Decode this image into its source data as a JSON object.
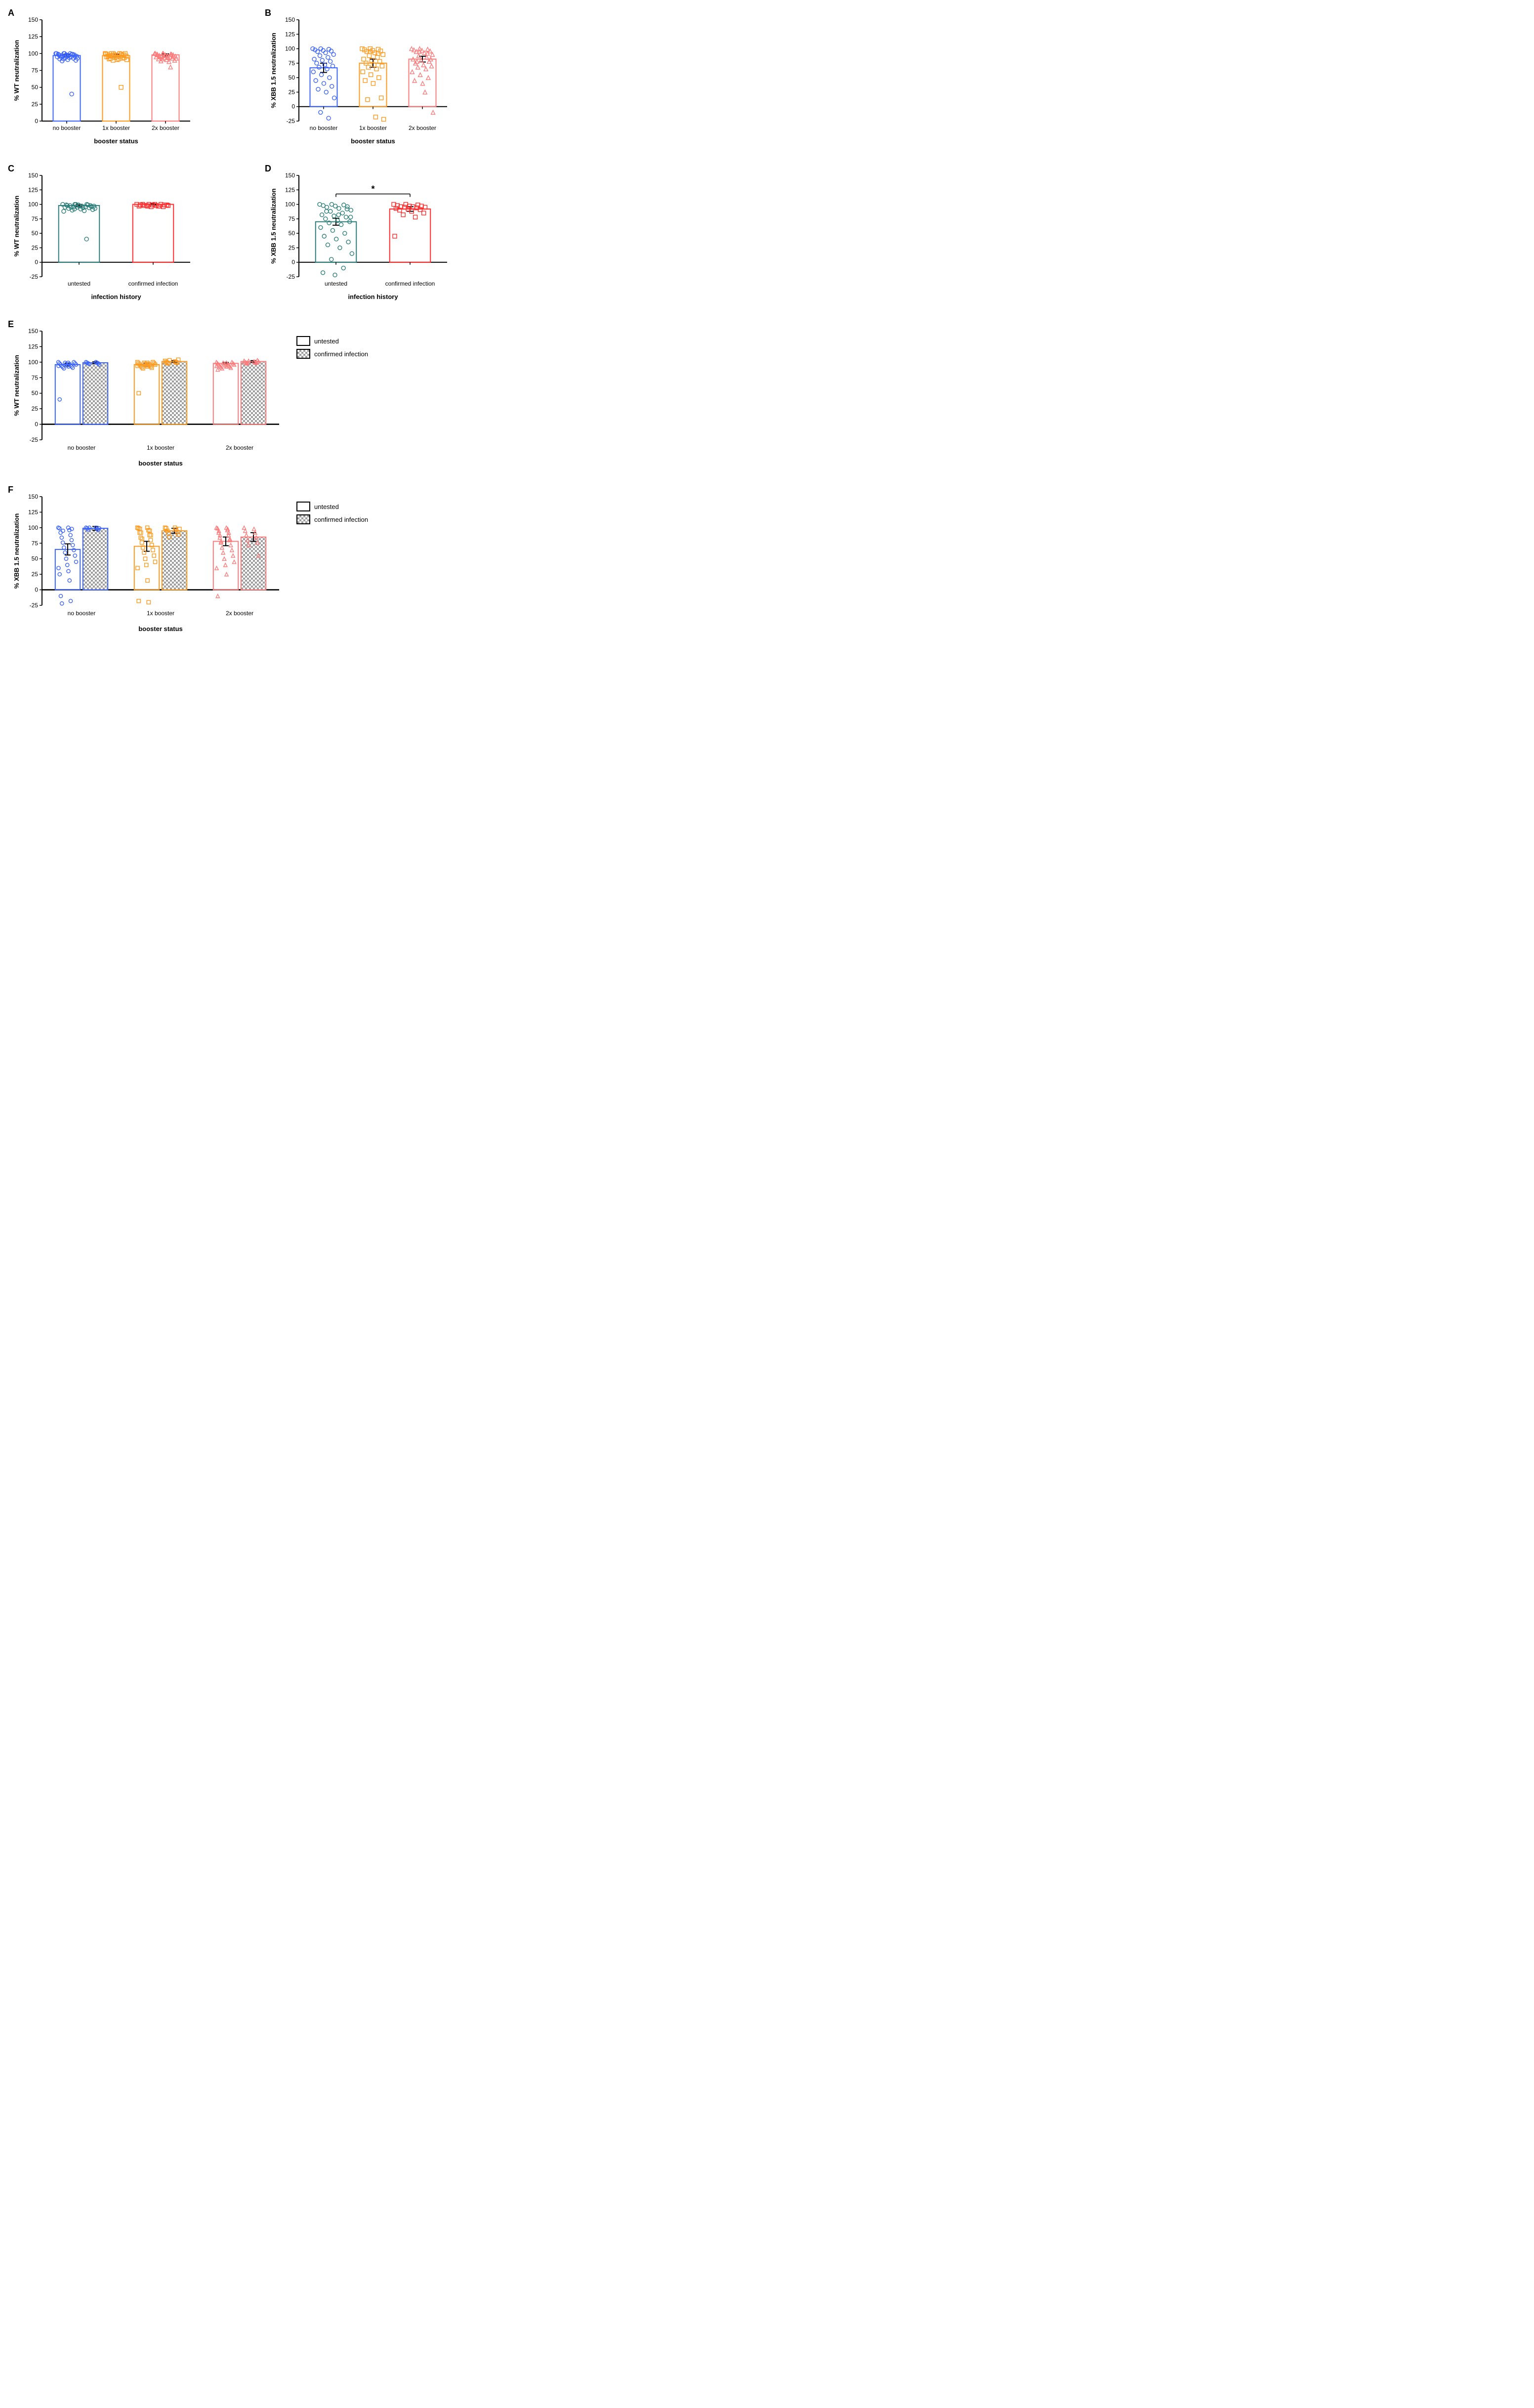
{
  "colors": {
    "blue": "#3a63ff",
    "orange": "#ff9a1f",
    "pink": "#ff7b7b",
    "teal": "#2b7e7a",
    "red": "#ff2d2d",
    "black": "#000000",
    "gray": "#9e9e9e",
    "white": "#ffffff"
  },
  "axis_font_size": 13,
  "tick_font_size": 12,
  "label_font_size": 18,
  "panelA": {
    "label": "A",
    "type": "bar_scatter",
    "ylabel": "% WT neutralization",
    "xlabel": "booster status",
    "ylim": [
      0,
      150
    ],
    "ytick_step": 25,
    "categories": [
      "no booster",
      "1x booster",
      "2x booster"
    ],
    "bar_colors": [
      "#3a63ff",
      "#ff9a1f",
      "#ff7b7b"
    ],
    "marker": [
      "circle",
      "square",
      "triangle"
    ],
    "means": [
      97,
      97,
      98
    ],
    "sem": [
      2,
      2,
      1.5
    ],
    "points": [
      [
        100,
        100,
        99,
        99,
        98,
        98,
        97,
        97,
        96,
        96,
        95,
        95,
        94,
        93,
        92,
        91,
        90,
        89,
        100,
        100,
        100,
        99,
        98,
        97,
        96,
        95,
        94,
        93,
        92,
        40
      ],
      [
        100,
        100,
        99,
        99,
        98,
        98,
        97,
        97,
        96,
        96,
        95,
        95,
        94,
        93,
        92,
        91,
        100,
        100,
        100,
        99,
        98,
        97,
        96,
        95,
        94,
        93,
        92,
        91,
        90,
        50
      ],
      [
        100,
        100,
        99,
        99,
        98,
        98,
        97,
        97,
        96,
        96,
        95,
        95,
        94,
        93,
        92,
        91,
        90,
        89,
        88,
        100,
        100,
        99,
        98,
        97,
        96,
        95,
        94,
        93,
        92,
        80
      ]
    ]
  },
  "panelB": {
    "label": "B",
    "type": "bar_scatter",
    "ylabel": "% XBB 1.5 neutralization",
    "xlabel": "booster status",
    "ylim": [
      -25,
      150
    ],
    "ytick_step": 25,
    "categories": [
      "no booster",
      "1x booster",
      "2x booster"
    ],
    "bar_colors": [
      "#3a63ff",
      "#ff9a1f",
      "#ff7b7b"
    ],
    "marker": [
      "circle",
      "square",
      "triangle"
    ],
    "means": [
      67,
      75,
      82
    ],
    "sem": [
      8,
      7,
      5
    ],
    "points": [
      [
        100,
        100,
        99,
        98,
        97,
        96,
        95,
        93,
        90,
        88,
        85,
        82,
        80,
        78,
        75,
        72,
        70,
        68,
        65,
        60,
        55,
        50,
        45,
        40,
        35,
        30,
        25,
        15,
        -10,
        -20
      ],
      [
        100,
        100,
        99,
        98,
        97,
        96,
        95,
        93,
        90,
        88,
        85,
        82,
        80,
        78,
        75,
        72,
        70,
        68,
        65,
        60,
        55,
        50,
        45,
        40,
        15,
        12,
        -18,
        -22,
        95,
        92
      ],
      [
        100,
        100,
        99,
        98,
        97,
        96,
        95,
        93,
        90,
        88,
        85,
        82,
        80,
        78,
        75,
        72,
        70,
        68,
        65,
        60,
        55,
        50,
        45,
        40,
        82,
        78,
        25,
        -10,
        95,
        92
      ]
    ]
  },
  "panelC": {
    "label": "C",
    "type": "bar_scatter",
    "ylabel": "% WT neutralization",
    "xlabel": "infection history",
    "ylim": [
      -25,
      150
    ],
    "ytick_step": 25,
    "categories": [
      "untested",
      "confirmed infection"
    ],
    "bar_colors": [
      "#2b7e7a",
      "#ff2d2d"
    ],
    "marker": [
      "circle",
      "square"
    ],
    "means": [
      98,
      100
    ],
    "sem": [
      2,
      1
    ],
    "points": [
      [
        100,
        100,
        100,
        99,
        99,
        98,
        98,
        97,
        97,
        96,
        96,
        95,
        95,
        94,
        93,
        92,
        91,
        90,
        89,
        88,
        100,
        99,
        98,
        97,
        96,
        95,
        94,
        93,
        92,
        40
      ],
      [
        100,
        100,
        100,
        99,
        99,
        99,
        98,
        98,
        98,
        97,
        97,
        97,
        96,
        96,
        100,
        100,
        99,
        98,
        97
      ]
    ]
  },
  "panelD": {
    "label": "D",
    "type": "bar_scatter",
    "ylabel": "% XBB 1.5 neutralization",
    "xlabel": "infection history",
    "ylim": [
      -25,
      150
    ],
    "ytick_step": 25,
    "categories": [
      "untested",
      "confirmed infection"
    ],
    "bar_colors": [
      "#2b7e7a",
      "#ff2d2d"
    ],
    "marker": [
      "circle",
      "square"
    ],
    "means": [
      70,
      92
    ],
    "sem": [
      6,
      4
    ],
    "points": [
      [
        100,
        100,
        99,
        98,
        97,
        96,
        95,
        93,
        90,
        88,
        85,
        82,
        80,
        78,
        75,
        72,
        70,
        68,
        65,
        60,
        55,
        50,
        45,
        40,
        35,
        30,
        25,
        15,
        5,
        -10,
        -18,
        -22,
        92,
        88,
        82,
        78
      ],
      [
        100,
        100,
        99,
        98,
        97,
        97,
        96,
        96,
        95,
        95,
        94,
        93,
        92,
        91,
        90,
        88,
        85,
        82,
        78,
        45
      ]
    ],
    "sig": {
      "from": 0,
      "to": 1,
      "label": "*",
      "y": 118
    }
  },
  "panelE": {
    "label": "E",
    "type": "grouped_bar_scatter",
    "ylabel": "% WT neutralization",
    "xlabel": "booster status",
    "ylim": [
      -25,
      150
    ],
    "ytick_step": 25,
    "categories": [
      "no booster",
      "1x booster",
      "2x booster"
    ],
    "sub_labels": [
      "untested",
      "confirmed infection"
    ],
    "bar_colors": [
      "#3a63ff",
      "#ff9a1f",
      "#ff7b7b"
    ],
    "marker": [
      "circle",
      "square",
      "triangle"
    ],
    "hatched_second": true,
    "means": [
      [
        96,
        99
      ],
      [
        96,
        101
      ],
      [
        98,
        101
      ]
    ],
    "sem": [
      [
        2,
        1.5
      ],
      [
        2,
        1.5
      ],
      [
        1.5,
        1.5
      ]
    ],
    "points": [
      [
        [
          100,
          99,
          98,
          97,
          96,
          95,
          94,
          93,
          92,
          91,
          90,
          100,
          99,
          98,
          97,
          96,
          95,
          94,
          93,
          40
        ],
        [
          100,
          100,
          99,
          99,
          98,
          98,
          97,
          96
        ]
      ],
      [
        [
          100,
          99,
          98,
          97,
          96,
          95,
          94,
          93,
          92,
          91,
          90,
          100,
          99,
          98,
          97,
          96,
          95,
          94,
          93,
          50
        ],
        [
          102,
          101,
          100,
          100,
          99,
          99,
          98,
          104,
          103
        ]
      ],
      [
        [
          100,
          99,
          98,
          97,
          96,
          95,
          94,
          93,
          92,
          91,
          90,
          100,
          99,
          98,
          97,
          96,
          95,
          94,
          93,
          88
        ],
        [
          102,
          101,
          100,
          100,
          99,
          99,
          98,
          103,
          102,
          101
        ]
      ]
    ],
    "legend": [
      {
        "swatch": "open",
        "label": "untested"
      },
      {
        "swatch": "hatched",
        "label": "confirmed infection"
      }
    ]
  },
  "panelF": {
    "label": "F",
    "type": "grouped_bar_scatter",
    "ylabel": "% XBB 1.5 neutralization",
    "xlabel": "booster status",
    "ylim": [
      -25,
      150
    ],
    "ytick_step": 25,
    "categories": [
      "no booster",
      "1x booster",
      "2x booster"
    ],
    "sub_labels": [
      "untested",
      "confirmed infection"
    ],
    "bar_colors": [
      "#3a63ff",
      "#ff9a1f",
      "#ff7b7b"
    ],
    "marker": [
      "circle",
      "square",
      "triangle"
    ],
    "hatched_second": true,
    "means": [
      [
        65,
        99
      ],
      [
        70,
        95
      ],
      [
        78,
        85
      ]
    ],
    "sem": [
      [
        9,
        3
      ],
      [
        8,
        4
      ],
      [
        7,
        7
      ]
    ],
    "points": [
      [
        [
          100,
          100,
          99,
          96,
          92,
          88,
          84,
          80,
          76,
          72,
          68,
          64,
          60,
          55,
          50,
          45,
          40,
          35,
          30,
          25,
          15,
          -10,
          -18,
          -22,
          98,
          95
        ],
        [
          100,
          100,
          99,
          98,
          97,
          96,
          100,
          99
        ]
      ],
      [
        [
          100,
          100,
          99,
          96,
          92,
          88,
          84,
          80,
          76,
          72,
          68,
          64,
          60,
          55,
          50,
          45,
          40,
          35,
          15,
          -18,
          -20,
          98,
          95,
          92,
          88,
          82
        ],
        [
          100,
          100,
          99,
          97,
          95,
          93,
          91,
          89,
          85,
          98
        ]
      ],
      [
        [
          100,
          100,
          99,
          96,
          92,
          88,
          84,
          80,
          76,
          72,
          68,
          64,
          60,
          55,
          50,
          45,
          40,
          35,
          25,
          -10,
          98,
          95,
          92,
          88,
          82,
          78
        ],
        [
          100,
          98,
          95,
          92,
          88,
          84,
          80,
          76,
          72,
          55
        ]
      ]
    ],
    "legend": [
      {
        "swatch": "open",
        "label": "untested"
      },
      {
        "swatch": "hatched",
        "label": "confirmed infection"
      }
    ]
  }
}
